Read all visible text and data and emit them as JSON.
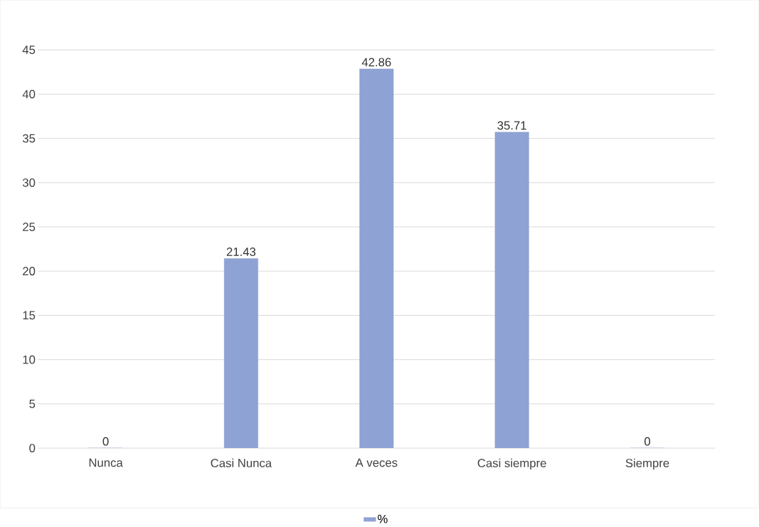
{
  "chart_data": {
    "type": "bar",
    "categories": [
      "Nunca",
      "Casi Nunca",
      "A veces",
      "Casi siempre",
      "Siempre"
    ],
    "series": [
      {
        "name": "%",
        "color": "#8fa2d4",
        "values": [
          0,
          21.43,
          42.86,
          35.71,
          0
        ]
      }
    ],
    "ylim": [
      0,
      45
    ],
    "yticks": [
      0,
      5,
      10,
      15,
      20,
      25,
      30,
      35,
      40,
      45
    ],
    "grid": "y",
    "legend": "bottom",
    "data_labels": true
  }
}
